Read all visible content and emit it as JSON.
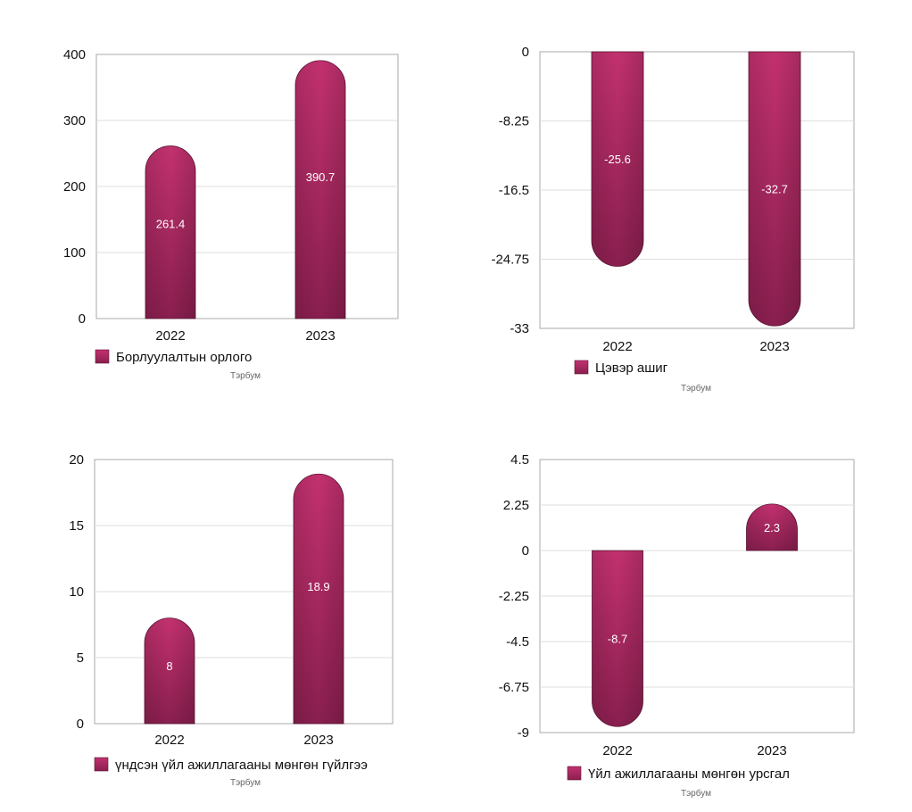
{
  "chart_data": [
    {
      "type": "bar",
      "categories": [
        "2022",
        "2023"
      ],
      "values": [
        261.4,
        390.7
      ],
      "labels": [
        "261.4",
        "390.7"
      ],
      "legend": "Борлуулалтын орлого",
      "unit": "Тэрбум",
      "ylim": [
        0,
        400
      ],
      "yticks": [
        "0",
        "100",
        "200",
        "300",
        "400"
      ],
      "ytick_values": [
        0,
        100,
        200,
        300,
        400
      ],
      "grid": true,
      "color": "#b42a6a"
    },
    {
      "type": "bar",
      "categories": [
        "2022",
        "2023"
      ],
      "values": [
        -25.6,
        -32.7
      ],
      "labels": [
        "-25.6",
        "-32.7"
      ],
      "legend": "Цэвэр ашиг",
      "unit": "Тэрбум",
      "ylim": [
        -33,
        0
      ],
      "yticks": [
        "0",
        "-8.25",
        "-16.5",
        "-24.75",
        "-33"
      ],
      "ytick_values": [
        0,
        -8.25,
        -16.5,
        -24.75,
        -33
      ],
      "grid": true,
      "color": "#b42a6a"
    },
    {
      "type": "bar",
      "categories": [
        "2022",
        "2023"
      ],
      "values": [
        8,
        18.9
      ],
      "labels": [
        "8",
        "18.9"
      ],
      "legend": "үндсэн үйл ажиллагааны мөнгөн гүйлгээ",
      "unit": "Тэрбум",
      "ylim": [
        0,
        20
      ],
      "yticks": [
        "0",
        "5",
        "10",
        "15",
        "20"
      ],
      "ytick_values": [
        0,
        5,
        10,
        15,
        20
      ],
      "grid": true,
      "color": "#b42a6a"
    },
    {
      "type": "bar",
      "categories": [
        "2022",
        "2023"
      ],
      "values": [
        -8.7,
        2.3
      ],
      "labels": [
        "-8.7",
        "2.3"
      ],
      "legend": "Үйл ажиллагааны мөнгөн урсгал",
      "unit": "Тэрбум",
      "ylim": [
        -9,
        4.5
      ],
      "yticks": [
        "4.5",
        "2.25",
        "0",
        "-2.25",
        "-4.5",
        "-6.75",
        "-9"
      ],
      "ytick_values": [
        4.5,
        2.25,
        0,
        -2.25,
        -4.5,
        -6.75,
        -9
      ],
      "grid": true,
      "color": "#b42a6a"
    }
  ]
}
